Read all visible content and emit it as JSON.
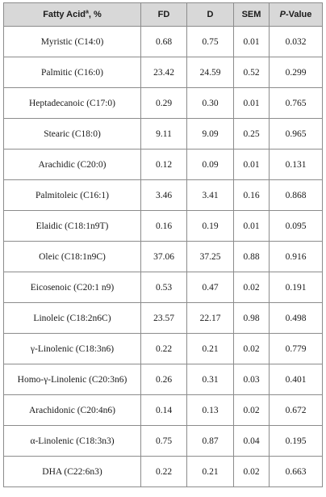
{
  "table": {
    "headers": {
      "fatty_acid": "Fatty Acid",
      "fatty_acid_sup": "a",
      "fatty_acid_suffix": ", %",
      "fd": "FD",
      "d": "D",
      "sem": "SEM",
      "pvalue_p": "P",
      "pvalue_rest": "-Value"
    },
    "rows": [
      {
        "name": "Myristic (C14:0)",
        "fd": "0.68",
        "d": "0.75",
        "sem": "0.01",
        "p": "0.032"
      },
      {
        "name": "Palmitic (C16:0)",
        "fd": "23.42",
        "d": "24.59",
        "sem": "0.52",
        "p": "0.299"
      },
      {
        "name": "Heptadecanoic (C17:0)",
        "fd": "0.29",
        "d": "0.30",
        "sem": "0.01",
        "p": "0.765"
      },
      {
        "name": "Stearic (C18:0)",
        "fd": "9.11",
        "d": "9.09",
        "sem": "0.25",
        "p": "0.965"
      },
      {
        "name": "Arachidic (C20:0)",
        "fd": "0.12",
        "d": "0.09",
        "sem": "0.01",
        "p": "0.131"
      },
      {
        "name": "Palmitoleic (C16:1)",
        "fd": "3.46",
        "d": "3.41",
        "sem": "0.16",
        "p": "0.868"
      },
      {
        "name": "Elaidic (C18:1n9T)",
        "fd": "0.16",
        "d": "0.19",
        "sem": "0.01",
        "p": "0.095"
      },
      {
        "name": "Oleic (C18:1n9C)",
        "fd": "37.06",
        "d": "37.25",
        "sem": "0.88",
        "p": "0.916"
      },
      {
        "name": "Eicosenoic (C20:1 n9)",
        "fd": "0.53",
        "d": "0.47",
        "sem": "0.02",
        "p": "0.191"
      },
      {
        "name": "Linoleic (C18:2n6C)",
        "fd": "23.57",
        "d": "22.17",
        "sem": "0.98",
        "p": "0.498"
      },
      {
        "name": "γ-Linolenic (C18:3n6)",
        "fd": "0.22",
        "d": "0.21",
        "sem": "0.02",
        "p": "0.779"
      },
      {
        "name": "Homo-γ-Linolenic (C20:3n6)",
        "fd": "0.26",
        "d": "0.31",
        "sem": "0.03",
        "p": "0.401"
      },
      {
        "name": "Arachidonic (C20:4n6)",
        "fd": "0.14",
        "d": "0.13",
        "sem": "0.02",
        "p": "0.672"
      },
      {
        "name": "α-Linolenic (C18:3n3)",
        "fd": "0.75",
        "d": "0.87",
        "sem": "0.04",
        "p": "0.195"
      },
      {
        "name": "DHA (C22:6n3)",
        "fd": "0.22",
        "d": "0.21",
        "sem": "0.02",
        "p": "0.663"
      }
    ]
  }
}
